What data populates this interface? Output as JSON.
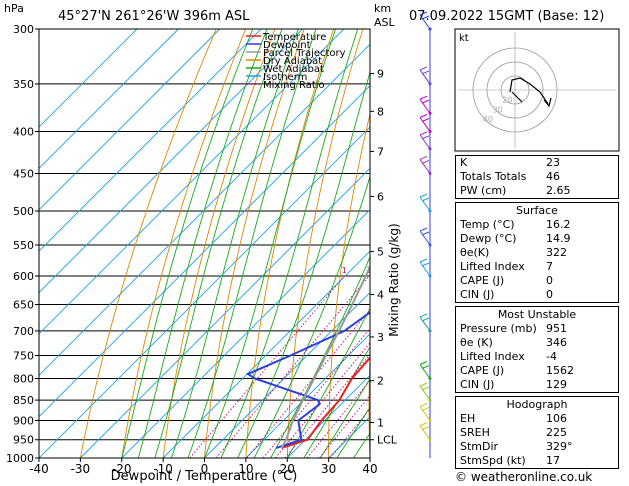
{
  "header": {
    "location": "45°27'N  261°26'W  396m  ASL",
    "datetime": "07.09.2022  15GMT  (Base: 12)",
    "p_unit": "hPa",
    "km_unit": "km",
    "asl_label": "ASL"
  },
  "legend": [
    {
      "label": "Temperature",
      "color": "#e8221c",
      "dash": ""
    },
    {
      "label": "Dewpoint",
      "color": "#2d3edb",
      "dash": ""
    },
    {
      "label": "Parcel Trajectory",
      "color": "#9a9a9a",
      "dash": ""
    },
    {
      "label": "Dry Adiabat",
      "color": "#d98a00",
      "dash": ""
    },
    {
      "label": "Wet Adiabat",
      "color": "#1aa81a",
      "dash": ""
    },
    {
      "label": "Isotherm",
      "color": "#1aa0e0",
      "dash": ""
    },
    {
      "label": "Mixing Ratio",
      "color": "#c0007a",
      "dash": "2,2"
    }
  ],
  "chart_data": {
    "type": "line",
    "xlabel": "Dewpoint / Temperature (°C)",
    "xlim": [
      -40,
      40
    ],
    "ylim_hPa": [
      1000,
      300
    ],
    "x_ticks": [
      -40,
      -30,
      -20,
      -10,
      0,
      10,
      20,
      30,
      40
    ],
    "pressure_ticks": [
      300,
      350,
      400,
      450,
      500,
      550,
      600,
      650,
      700,
      750,
      800,
      850,
      900,
      950,
      1000
    ],
    "km_ticks": [
      {
        "label": "9",
        "p": 340
      },
      {
        "label": "8",
        "p": 378
      },
      {
        "label": "7",
        "p": 423
      },
      {
        "label": "6",
        "p": 480
      },
      {
        "label": "5",
        "p": 560
      },
      {
        "label": "4",
        "p": 632
      },
      {
        "label": "3",
        "p": 712
      },
      {
        "label": "2",
        "p": 805
      },
      {
        "label": "1",
        "p": 905
      },
      {
        "label": "LCL",
        "p": 950
      }
    ],
    "mixing_ratio_label": "Mixing Ratio (g/kg)",
    "mixing_ratio_values": [
      {
        "label": "1",
        "t600": -10.2
      },
      {
        "label": "2",
        "t600": -4.2
      },
      {
        "label": "4",
        "t600": 2.8
      },
      {
        "label": "6",
        "t600": 6.5
      },
      {
        "label": "8",
        "t600": 9.3
      },
      {
        "label": "10",
        "t600": 11.5
      },
      {
        "label": "16",
        "t600": 16.5
      },
      {
        "label": "20",
        "t600": 19.3
      },
      {
        "label": "25",
        "t600": 21.8
      }
    ],
    "series": [
      {
        "key": "temperature",
        "points": [
          [
            972,
            16.2
          ],
          [
            950,
            20.5
          ],
          [
            900,
            19.2
          ],
          [
            850,
            18.6
          ],
          [
            800,
            16.4
          ],
          [
            750,
            15.7
          ],
          [
            700,
            11.8
          ],
          [
            650,
            7.6
          ],
          [
            600,
            4.2
          ],
          [
            550,
            2.8
          ],
          [
            500,
            0.2
          ],
          [
            450,
            -4.2
          ],
          [
            400,
            -9.0
          ],
          [
            350,
            -12.8
          ],
          [
            300,
            -20.2
          ]
        ]
      },
      {
        "key": "dewpoint",
        "points": [
          [
            972,
            14.9
          ],
          [
            950,
            19.0
          ],
          [
            900,
            13.6
          ],
          [
            860,
            14.8
          ],
          [
            850,
            13.4
          ],
          [
            800,
            -7.0
          ],
          [
            790,
            -9.8
          ],
          [
            750,
            -4.0
          ],
          [
            700,
            3.1
          ],
          [
            650,
            5.5
          ],
          [
            600,
            8.2
          ],
          [
            585,
            1.2
          ],
          [
            575,
            -7.2
          ],
          [
            550,
            -3.6
          ],
          [
            530,
            -5.8
          ],
          [
            500,
            -6.5
          ],
          [
            450,
            -16.0
          ],
          [
            400,
            -24.2
          ],
          [
            380,
            -28.5
          ],
          [
            350,
            -27.0
          ],
          [
            300,
            -40.0
          ]
        ]
      },
      {
        "key": "parcel",
        "points": [
          [
            972,
            16.2
          ],
          [
            950,
            15.3
          ],
          [
            900,
            12.3
          ],
          [
            850,
            9.8
          ],
          [
            800,
            7.3
          ],
          [
            750,
            4.6
          ],
          [
            700,
            1.8
          ],
          [
            650,
            -1.4
          ],
          [
            600,
            -5.0
          ],
          [
            550,
            -9.1
          ],
          [
            500,
            -13.5
          ],
          [
            450,
            -18.8
          ],
          [
            400,
            -25.0
          ],
          [
            350,
            -32.2
          ],
          [
            300,
            -40.5
          ]
        ]
      }
    ]
  },
  "hodograph": {
    "unit_label": "kt",
    "ring_labels": [
      "20",
      "30",
      "40"
    ]
  },
  "indices": [
    {
      "label": "K",
      "value": "23"
    },
    {
      "label": "Totals Totals",
      "value": "46"
    },
    {
      "label": "PW (cm)",
      "value": "2.65"
    }
  ],
  "surface": {
    "title": "Surface",
    "rows": [
      {
        "label": "Temp (°C)",
        "value": "16.2"
      },
      {
        "label": "Dewp (°C)",
        "value": "14.9"
      },
      {
        "label": "θe(K)",
        "value": "322"
      },
      {
        "label": "Lifted Index",
        "value": "7"
      },
      {
        "label": "CAPE (J)",
        "value": "0"
      },
      {
        "label": "CIN (J)",
        "value": "0"
      }
    ]
  },
  "most_unstable": {
    "title": "Most Unstable",
    "rows": [
      {
        "label": "Pressure (mb)",
        "value": "951"
      },
      {
        "label": "θe (K)",
        "value": "346"
      },
      {
        "label": "Lifted Index",
        "value": "-4"
      },
      {
        "label": "CAPE (J)",
        "value": "1562"
      },
      {
        "label": "CIN (J)",
        "value": "129"
      }
    ]
  },
  "hodograph_block": {
    "title": "Hodograph",
    "rows": [
      {
        "label": "EH",
        "value": "106"
      },
      {
        "label": "SREH",
        "value": "225"
      },
      {
        "label": "StmDir",
        "value": "329°"
      },
      {
        "label": "StmSpd (kt)",
        "value": "17"
      }
    ]
  },
  "footer": "© weatheronline.co.uk"
}
